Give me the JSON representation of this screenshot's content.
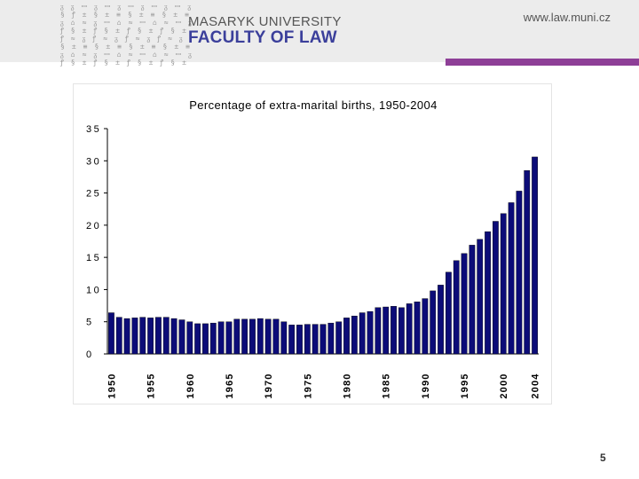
{
  "header": {
    "pattern_rows": [
      "ᵹ ᵹ ꟷ ᵹ ꟷ ᵹ ꟷ ᵹ ꟷ ᵹ ꟷ ᵹ",
      "§ ꝭ ± § ± ≡ § ± ≡ § ± ≡",
      "ᵹ ⌂ ≈ ᵹ ꟷ ⌂ ≈ ꟷ ⌂ ≈ ꟷ ᵹ",
      "ꝭ § ± ꝭ § ± ꝭ § ± ꝭ § ±",
      "ꝭ ≈ ᵹ ꝭ ≈ ᵹ ꝭ ≈ ᵹ ꝭ ≈ ᵹ",
      "§ ± ≡ § ± ≡ § ± ≡ § ± ≡",
      "ᵹ ⌂ ≈ ᵹ ꟷ ⌂ ≈ ꟷ ⌂ ≈ ꟷ ᵹ",
      "ꝭ § ± ꝭ § ± ꝭ § ± ꝭ § ±"
    ],
    "university": "MASARYK UNIVERSITY",
    "faculty": "FACULTY OF LAW",
    "website": "www.law.muni.cz"
  },
  "colors": {
    "brand_blue": "#3b3f9b",
    "accent_purple": "#8e3f97",
    "bar_fill": "#0c0c78"
  },
  "chart_data": {
    "type": "bar",
    "title": "Percentage of extra-marital births, 1950-2004",
    "xlabel": "",
    "ylabel": "",
    "ylim": [
      0,
      35
    ],
    "yticks": [
      0,
      5,
      10,
      15,
      20,
      25,
      30,
      35
    ],
    "grid": false,
    "legend": "none",
    "tick_labels": [
      "1950",
      "1955",
      "1960",
      "1965",
      "1970",
      "1975",
      "1980",
      "1985",
      "1990",
      "1995",
      "2000",
      "2004"
    ],
    "categories": [
      1950,
      1951,
      1952,
      1953,
      1954,
      1955,
      1956,
      1957,
      1958,
      1959,
      1960,
      1961,
      1962,
      1963,
      1964,
      1965,
      1966,
      1967,
      1968,
      1969,
      1970,
      1971,
      1972,
      1973,
      1974,
      1975,
      1976,
      1977,
      1978,
      1979,
      1980,
      1981,
      1982,
      1983,
      1984,
      1985,
      1986,
      1987,
      1988,
      1989,
      1990,
      1991,
      1992,
      1993,
      1994,
      1995,
      1996,
      1997,
      1998,
      1999,
      2000,
      2001,
      2002,
      2003,
      2004
    ],
    "values": [
      6.4,
      5.7,
      5.5,
      5.6,
      5.7,
      5.6,
      5.7,
      5.7,
      5.5,
      5.3,
      5.0,
      4.7,
      4.7,
      4.8,
      5.0,
      5.0,
      5.4,
      5.4,
      5.4,
      5.5,
      5.4,
      5.4,
      5.0,
      4.5,
      4.5,
      4.6,
      4.6,
      4.6,
      4.8,
      5.0,
      5.6,
      5.9,
      6.4,
      6.6,
      7.2,
      7.3,
      7.4,
      7.2,
      7.8,
      8.1,
      8.6,
      9.8,
      10.7,
      12.7,
      14.5,
      15.6,
      16.9,
      17.8,
      19.0,
      20.6,
      21.8,
      23.5,
      25.3,
      28.5,
      30.6
    ]
  },
  "footer": {
    "page_number": "5"
  }
}
